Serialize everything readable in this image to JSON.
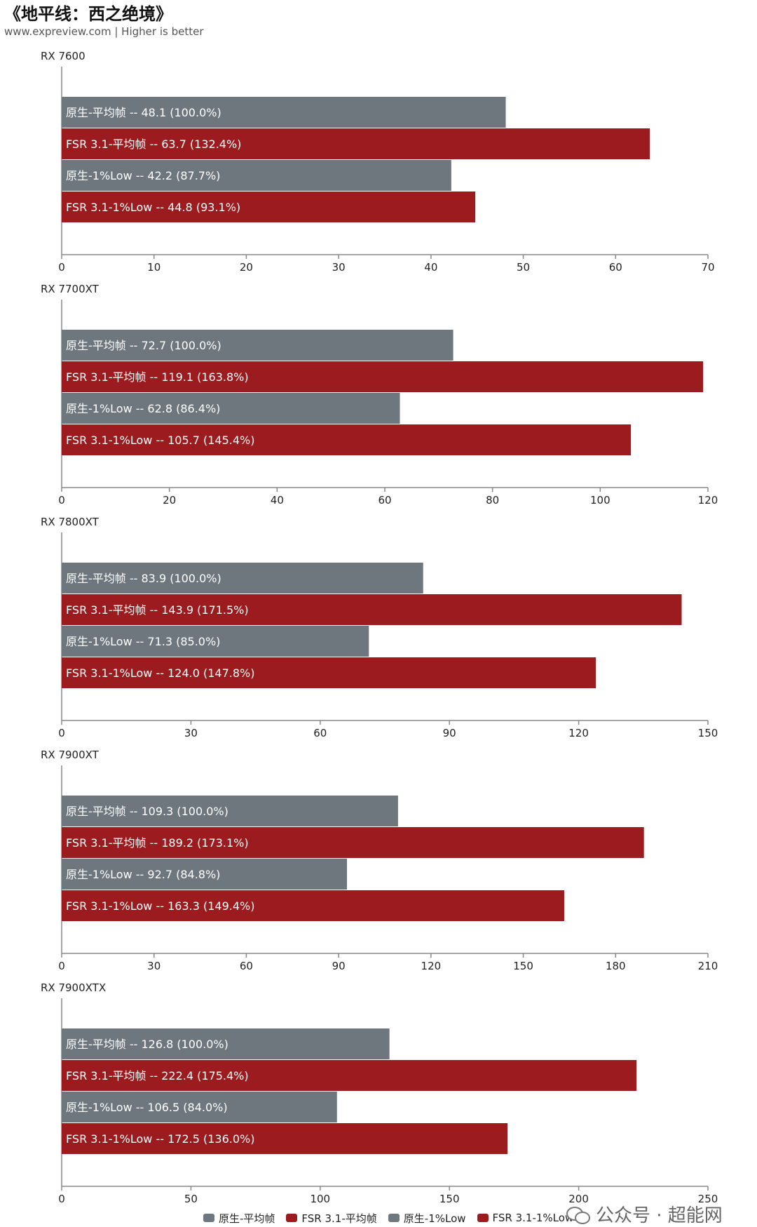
{
  "title": "《地平线：西之绝境》",
  "subtitle": "www.expreview.com | Higher is better",
  "colors": {
    "native": "#6e777d",
    "fsr": "#9b1b1e"
  },
  "legend": [
    {
      "label": "原生-平均帧",
      "color": "#6e777d"
    },
    {
      "label": "FSR 3.1-平均帧",
      "color": "#9b1b1e"
    },
    {
      "label": "原生-1%Low",
      "color": "#6e777d"
    },
    {
      "label": "FSR 3.1-1%Low",
      "color": "#9b1b1e"
    }
  ],
  "watermark": {
    "text": "公众号 · 超能网",
    "icon": "wechat-icon"
  },
  "chart_data": [
    {
      "type": "bar",
      "orientation": "horizontal",
      "title": "RX 7600",
      "xlim": [
        0,
        70
      ],
      "ticks": [
        0,
        10,
        20,
        30,
        40,
        50,
        60,
        70
      ],
      "bars": [
        {
          "label": "原生-平均帧  --  48.1 (100.0%)",
          "value": 48.1,
          "color": "#6e777d"
        },
        {
          "label": "FSR 3.1-平均帧  --  63.7 (132.4%)",
          "value": 63.7,
          "color": "#9b1b1e"
        },
        {
          "label": "原生-1%Low  --  42.2 (87.7%)",
          "value": 42.2,
          "color": "#6e777d"
        },
        {
          "label": "FSR 3.1-1%Low  --  44.8 (93.1%)",
          "value": 44.8,
          "color": "#9b1b1e"
        }
      ]
    },
    {
      "type": "bar",
      "orientation": "horizontal",
      "title": "RX 7700XT",
      "xlim": [
        0,
        120
      ],
      "ticks": [
        0,
        20,
        40,
        60,
        80,
        100,
        120
      ],
      "bars": [
        {
          "label": "原生-平均帧  --  72.7 (100.0%)",
          "value": 72.7,
          "color": "#6e777d"
        },
        {
          "label": "FSR 3.1-平均帧  --  119.1 (163.8%)",
          "value": 119.1,
          "color": "#9b1b1e"
        },
        {
          "label": "原生-1%Low  --  62.8 (86.4%)",
          "value": 62.8,
          "color": "#6e777d"
        },
        {
          "label": "FSR 3.1-1%Low  --  105.7 (145.4%)",
          "value": 105.7,
          "color": "#9b1b1e"
        }
      ]
    },
    {
      "type": "bar",
      "orientation": "horizontal",
      "title": "RX 7800XT",
      "xlim": [
        0,
        150
      ],
      "ticks": [
        0,
        30,
        60,
        90,
        120,
        150
      ],
      "bars": [
        {
          "label": "原生-平均帧  --  83.9 (100.0%)",
          "value": 83.9,
          "color": "#6e777d"
        },
        {
          "label": "FSR 3.1-平均帧  --  143.9 (171.5%)",
          "value": 143.9,
          "color": "#9b1b1e"
        },
        {
          "label": "原生-1%Low  --  71.3 (85.0%)",
          "value": 71.3,
          "color": "#6e777d"
        },
        {
          "label": "FSR 3.1-1%Low  --  124.0 (147.8%)",
          "value": 124.0,
          "color": "#9b1b1e"
        }
      ]
    },
    {
      "type": "bar",
      "orientation": "horizontal",
      "title": "RX 7900XT",
      "xlim": [
        0,
        210
      ],
      "ticks": [
        0,
        30,
        60,
        90,
        120,
        150,
        180,
        210
      ],
      "bars": [
        {
          "label": "原生-平均帧  --  109.3 (100.0%)",
          "value": 109.3,
          "color": "#6e777d"
        },
        {
          "label": "FSR 3.1-平均帧  --  189.2 (173.1%)",
          "value": 189.2,
          "color": "#9b1b1e"
        },
        {
          "label": "原生-1%Low  --  92.7 (84.8%)",
          "value": 92.7,
          "color": "#6e777d"
        },
        {
          "label": "FSR 3.1-1%Low  --  163.3 (149.4%)",
          "value": 163.3,
          "color": "#9b1b1e"
        }
      ]
    },
    {
      "type": "bar",
      "orientation": "horizontal",
      "title": "RX 7900XTX",
      "xlim": [
        0,
        250
      ],
      "ticks": [
        0,
        50,
        100,
        150,
        200,
        250
      ],
      "bars": [
        {
          "label": "原生-平均帧  --  126.8 (100.0%)",
          "value": 126.8,
          "color": "#6e777d"
        },
        {
          "label": "FSR 3.1-平均帧  --  222.4 (175.4%)",
          "value": 222.4,
          "color": "#9b1b1e"
        },
        {
          "label": "原生-1%Low  --  106.5 (84.0%)",
          "value": 106.5,
          "color": "#6e777d"
        },
        {
          "label": "FSR 3.1-1%Low  --  172.5 (136.0%)",
          "value": 172.5,
          "color": "#9b1b1e"
        }
      ]
    }
  ]
}
